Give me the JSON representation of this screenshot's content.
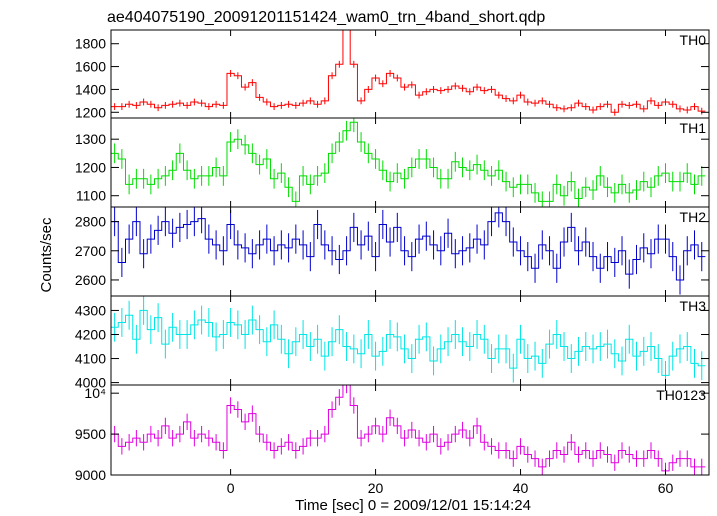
{
  "chart_data": {
    "type": "line",
    "title": "ae404075190_20091201151424_wam0_trn_4band_short.qdp",
    "xlabel": "Time [sec] 0 = 2009/12/01 15:14:24",
    "ylabel": "Counts/sec",
    "xlim": [
      -16.5,
      66
    ],
    "xticks": [
      "0",
      "20",
      "40",
      "60"
    ],
    "xtick_values": [
      0,
      20,
      40,
      60
    ],
    "bin_width_sec": 1,
    "x": [
      -16,
      -15,
      -14,
      -13,
      -12,
      -11,
      -10,
      -9,
      -8,
      -7,
      -6,
      -5,
      -4,
      -3,
      -2,
      -1,
      0,
      1,
      2,
      3,
      4,
      5,
      6,
      7,
      8,
      9,
      10,
      11,
      12,
      13,
      14,
      15,
      16,
      17,
      18,
      19,
      20,
      21,
      22,
      23,
      24,
      25,
      26,
      27,
      28,
      29,
      30,
      31,
      32,
      33,
      34,
      35,
      36,
      37,
      38,
      39,
      40,
      41,
      42,
      43,
      44,
      45,
      46,
      47,
      48,
      49,
      50,
      51,
      52,
      53,
      54,
      55,
      56,
      57,
      58,
      59,
      60,
      61,
      62,
      63,
      64,
      65
    ],
    "series": [
      {
        "name": "TH0",
        "color": "#ff0000",
        "ylim": [
          1150,
          1920
        ],
        "yticks": [
          "1200",
          "1400",
          "1600",
          "1800"
        ],
        "ytick_values": [
          1200,
          1400,
          1600,
          1800
        ],
        "values": [
          1250,
          1250,
          1270,
          1260,
          1290,
          1270,
          1240,
          1260,
          1270,
          1280,
          1260,
          1290,
          1280,
          1250,
          1270,
          1260,
          1540,
          1520,
          1420,
          1460,
          1330,
          1290,
          1250,
          1260,
          1270,
          1260,
          1280,
          1300,
          1270,
          1300,
          1520,
          1620,
          1950,
          1620,
          1300,
          1400,
          1500,
          1450,
          1540,
          1500,
          1420,
          1440,
          1350,
          1380,
          1400,
          1390,
          1400,
          1430,
          1410,
          1380,
          1420,
          1390,
          1400,
          1350,
          1320,
          1300,
          1350,
          1290,
          1280,
          1300,
          1270,
          1240,
          1230,
          1240,
          1280,
          1250,
          1220,
          1250,
          1270,
          1200,
          1270,
          1260,
          1270,
          1230,
          1300,
          1260,
          1290,
          1270,
          1230,
          1220,
          1250,
          1210
        ],
        "errors": [
          30,
          30,
          30,
          30,
          30,
          30,
          30,
          30,
          30,
          30,
          30,
          30,
          30,
          30,
          30,
          30,
          30,
          30,
          30,
          30,
          30,
          30,
          30,
          30,
          30,
          30,
          30,
          30,
          30,
          30,
          30,
          30,
          30,
          30,
          30,
          30,
          30,
          30,
          30,
          30,
          30,
          30,
          30,
          30,
          30,
          30,
          30,
          30,
          30,
          30,
          30,
          30,
          30,
          30,
          30,
          30,
          30,
          30,
          30,
          30,
          30,
          30,
          30,
          30,
          30,
          30,
          30,
          30,
          30,
          30,
          30,
          30,
          30,
          30,
          30,
          30,
          30,
          30,
          30,
          30,
          30,
          30
        ]
      },
      {
        "name": "TH1",
        "color": "#00dd00",
        "ylim": [
          1060,
          1375
        ],
        "yticks": [
          "1100",
          "1200",
          "1300"
        ],
        "ytick_values": [
          1100,
          1200,
          1300
        ],
        "values": [
          1250,
          1230,
          1140,
          1160,
          1160,
          1140,
          1160,
          1170,
          1190,
          1250,
          1190,
          1160,
          1170,
          1170,
          1200,
          1170,
          1290,
          1300,
          1280,
          1250,
          1210,
          1230,
          1160,
          1180,
          1130,
          1080,
          1170,
          1140,
          1170,
          1180,
          1250,
          1290,
          1330,
          1360,
          1290,
          1250,
          1230,
          1190,
          1150,
          1180,
          1160,
          1200,
          1230,
          1230,
          1200,
          1160,
          1160,
          1220,
          1200,
          1190,
          1210,
          1190,
          1170,
          1190,
          1150,
          1130,
          1140,
          1140,
          1110,
          1080,
          1080,
          1140,
          1100,
          1150,
          1090,
          1130,
          1120,
          1170,
          1130,
          1110,
          1140,
          1110,
          1120,
          1150,
          1130,
          1170,
          1180,
          1150,
          1150,
          1180,
          1140,
          1170
        ],
        "errors": [
          35,
          35,
          35,
          35,
          35,
          35,
          35,
          35,
          35,
          35,
          35,
          35,
          35,
          35,
          35,
          35,
          35,
          35,
          35,
          35,
          35,
          35,
          35,
          35,
          35,
          35,
          35,
          35,
          35,
          35,
          35,
          35,
          35,
          35,
          35,
          35,
          35,
          35,
          35,
          35,
          35,
          35,
          35,
          35,
          35,
          35,
          35,
          35,
          35,
          35,
          35,
          35,
          35,
          35,
          35,
          35,
          35,
          35,
          35,
          35,
          35,
          35,
          35,
          35,
          35,
          35,
          35,
          35,
          35,
          35,
          35,
          35,
          35,
          35,
          35,
          35,
          35,
          35,
          35,
          35,
          35,
          35
        ]
      },
      {
        "name": "TH2",
        "color": "#0000cc",
        "ylim": [
          2545,
          2850
        ],
        "yticks": [
          "2600",
          "2700",
          "2800"
        ],
        "ytick_values": [
          2600,
          2700,
          2800
        ],
        "values": [
          2800,
          2660,
          2740,
          2800,
          2690,
          2740,
          2770,
          2800,
          2760,
          2780,
          2790,
          2800,
          2810,
          2740,
          2720,
          2700,
          2790,
          2720,
          2710,
          2690,
          2720,
          2740,
          2700,
          2720,
          2710,
          2740,
          2720,
          2680,
          2790,
          2720,
          2700,
          2670,
          2700,
          2780,
          2720,
          2750,
          2680,
          2790,
          2730,
          2780,
          2700,
          2680,
          2740,
          2750,
          2720,
          2700,
          2760,
          2690,
          2700,
          2710,
          2740,
          2720,
          2800,
          2830,
          2800,
          2730,
          2700,
          2680,
          2640,
          2720,
          2700,
          2640,
          2730,
          2780,
          2700,
          2730,
          2680,
          2640,
          2680,
          2660,
          2700,
          2620,
          2670,
          2710,
          2690,
          2740,
          2740,
          2680,
          2600,
          2700,
          2720,
          2680
        ],
        "errors": [
          50,
          50,
          50,
          50,
          50,
          50,
          50,
          50,
          50,
          50,
          50,
          50,
          50,
          50,
          50,
          50,
          50,
          50,
          50,
          50,
          50,
          50,
          50,
          50,
          50,
          50,
          50,
          50,
          50,
          50,
          50,
          50,
          50,
          50,
          50,
          50,
          50,
          50,
          50,
          50,
          50,
          50,
          50,
          50,
          50,
          50,
          50,
          50,
          50,
          50,
          50,
          50,
          50,
          50,
          50,
          50,
          50,
          50,
          50,
          50,
          50,
          50,
          50,
          50,
          50,
          50,
          50,
          50,
          50,
          50,
          50,
          50,
          50,
          50,
          50,
          50,
          50,
          50,
          50,
          50,
          50,
          50
        ]
      },
      {
        "name": "TH3",
        "color": "#00e5e5",
        "ylim": [
          3990,
          4360
        ],
        "yticks": [
          "4000",
          "4100",
          "4200",
          "4300"
        ],
        "ytick_values": [
          4000,
          4100,
          4200,
          4300
        ],
        "values": [
          4230,
          4250,
          4280,
          4180,
          4300,
          4220,
          4270,
          4160,
          4230,
          4200,
          4200,
          4240,
          4260,
          4250,
          4190,
          4200,
          4250,
          4240,
          4200,
          4260,
          4220,
          4170,
          4240,
          4180,
          4120,
          4170,
          4200,
          4150,
          4180,
          4110,
          4170,
          4220,
          4150,
          4140,
          4120,
          4200,
          4110,
          4130,
          4200,
          4190,
          4140,
          4100,
          4180,
          4190,
          4090,
          4140,
          4170,
          4200,
          4170,
          4150,
          4200,
          4180,
          4100,
          4140,
          4140,
          4060,
          4180,
          4100,
          4110,
          4080,
          4160,
          4200,
          4150,
          4100,
          4130,
          4150,
          4140,
          4150,
          4160,
          4120,
          4090,
          4180,
          4110,
          4130,
          4150,
          4100,
          4030,
          4110,
          4140,
          4150,
          4080,
          4070
        ],
        "errors": [
          60,
          60,
          60,
          60,
          60,
          60,
          60,
          60,
          60,
          60,
          60,
          60,
          60,
          60,
          60,
          60,
          60,
          60,
          60,
          60,
          60,
          60,
          60,
          60,
          60,
          60,
          60,
          60,
          60,
          60,
          60,
          60,
          60,
          60,
          60,
          60,
          60,
          60,
          60,
          60,
          60,
          60,
          60,
          60,
          60,
          60,
          60,
          60,
          60,
          60,
          60,
          60,
          60,
          60,
          60,
          60,
          60,
          60,
          60,
          60,
          60,
          60,
          60,
          60,
          60,
          60,
          60,
          60,
          60,
          60,
          60,
          60,
          60,
          60,
          60,
          60,
          60,
          60,
          60,
          60,
          60,
          60
        ]
      },
      {
        "name": "TH0123",
        "color": "#e000e0",
        "ylim": [
          9000,
          10100
        ],
        "yticks": [
          "9000",
          "9500",
          "10⁴"
        ],
        "ytick_values": [
          9000,
          9500,
          10000
        ],
        "values": [
          9500,
          9350,
          9400,
          9450,
          9400,
          9500,
          9450,
          9600,
          9450,
          9500,
          9650,
          9450,
          9500,
          9450,
          9400,
          9300,
          9850,
          9800,
          9650,
          9750,
          9500,
          9400,
          9300,
          9350,
          9400,
          9300,
          9350,
          9450,
          9450,
          9500,
          9800,
          9950,
          10100,
          9850,
          9450,
          9500,
          9600,
          9500,
          9700,
          9600,
          9450,
          9550,
          9450,
          9400,
          9500,
          9350,
          9400,
          9500,
          9550,
          9450,
          9600,
          9400,
          9350,
          9300,
          9300,
          9200,
          9350,
          9250,
          9200,
          9100,
          9200,
          9300,
          9250,
          9400,
          9250,
          9300,
          9200,
          9300,
          9250,
          9150,
          9300,
          9250,
          9200,
          9200,
          9300,
          9200,
          9050,
          9150,
          9200,
          9200,
          9100,
          9100
        ],
        "errors": [
          100,
          100,
          100,
          100,
          100,
          100,
          100,
          100,
          100,
          100,
          100,
          100,
          100,
          100,
          100,
          100,
          100,
          100,
          100,
          100,
          100,
          100,
          100,
          100,
          100,
          100,
          100,
          100,
          100,
          100,
          100,
          100,
          100,
          100,
          100,
          100,
          100,
          100,
          100,
          100,
          100,
          100,
          100,
          100,
          100,
          100,
          100,
          100,
          100,
          100,
          100,
          100,
          100,
          100,
          100,
          100,
          100,
          100,
          100,
          100,
          100,
          100,
          100,
          100,
          100,
          100,
          100,
          100,
          100,
          100,
          100,
          100,
          100,
          100,
          100,
          100,
          100,
          100,
          100,
          100,
          100,
          100
        ]
      }
    ]
  }
}
